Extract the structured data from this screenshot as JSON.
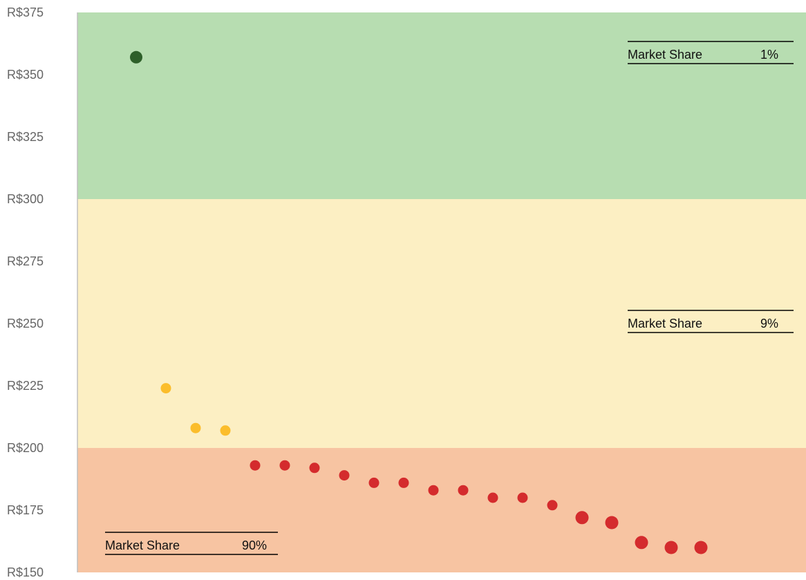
{
  "chart_data": {
    "type": "scatter",
    "title": "",
    "xlabel": "",
    "ylabel": "",
    "ylim": [
      150,
      375
    ],
    "yticks": [
      "R$150",
      "R$175",
      "R$200",
      "R$225",
      "R$250",
      "R$275",
      "R$300",
      "R$325",
      "R$350",
      "R$375"
    ],
    "ytick_values": [
      150,
      175,
      200,
      225,
      250,
      275,
      300,
      325,
      350,
      375
    ],
    "grid": false,
    "bands": [
      {
        "from": 300,
        "to": 375,
        "color": "#b7ddb1",
        "market_share_label": "Market Share",
        "market_share_value": "1%"
      },
      {
        "from": 200,
        "to": 300,
        "color": "#fcefc3",
        "market_share_label": "Market Share",
        "market_share_value": "9%"
      },
      {
        "from": 150,
        "to": 200,
        "color": "#f7c4a2",
        "market_share_label": "Market Share",
        "market_share_value": "90%"
      }
    ],
    "series": [
      {
        "color": "#2e5f2a",
        "x": [
          1
        ],
        "values": [
          357
        ]
      },
      {
        "color": "#fbbd2b",
        "x": [
          2,
          3,
          4
        ],
        "values": [
          224,
          208,
          207
        ]
      },
      {
        "color": "#d42b2d",
        "x": [
          5,
          6,
          7,
          8,
          9,
          10,
          11,
          12,
          13,
          14,
          15,
          16,
          17,
          18,
          19,
          20
        ],
        "values": [
          193,
          193,
          192,
          189,
          186,
          186,
          183,
          183,
          180,
          180,
          177,
          172,
          170,
          162,
          160,
          160
        ]
      }
    ]
  }
}
